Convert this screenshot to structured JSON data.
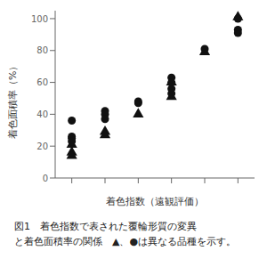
{
  "chart_data": {
    "type": "scatter",
    "x_label": "着色指数（遠観評価）",
    "y_label": "着色面積率（%）",
    "annotations": [
      "図1　着色指数で表された覆輪形質の変異",
      "と着色面積率の関係　▲、●は異なる品種を示す。"
    ],
    "xlim": [
      -0.5,
      5.5
    ],
    "ylim": [
      0,
      105
    ],
    "xticks": [
      0,
      1,
      2,
      3,
      4,
      5
    ],
    "yticks": [
      0,
      20,
      40,
      60,
      80,
      100
    ],
    "grid": false,
    "tick_labels": "y",
    "series": [
      {
        "marker": "triangle",
        "color": "#111111",
        "x": [
          0,
          0,
          0,
          1,
          1,
          2,
          3,
          3,
          4,
          5
        ],
        "values": [
          21,
          16,
          14,
          29,
          27,
          40,
          60,
          51,
          79,
          101
        ]
      },
      {
        "marker": "circle",
        "color": "#111111",
        "x": [
          0,
          0,
          0,
          0,
          1,
          1,
          1,
          2,
          2,
          3,
          3,
          3,
          3,
          4,
          5,
          5,
          5
        ],
        "values": [
          36,
          26,
          25,
          23,
          42,
          40,
          37,
          48,
          47,
          63,
          60,
          56,
          53,
          81,
          100,
          93,
          91
        ]
      }
    ]
  }
}
